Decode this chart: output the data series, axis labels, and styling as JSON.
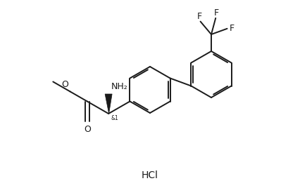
{
  "background_color": "#ffffff",
  "line_color": "#1a1a1a",
  "line_width": 1.4,
  "font_size": 8,
  "hcl_label": "HCl",
  "nh2_label": "NH₂",
  "o_label": "O",
  "and1_label": "&1",
  "f_label": "F",
  "methoxy_o_label": "O",
  "methyl_label": "O"
}
